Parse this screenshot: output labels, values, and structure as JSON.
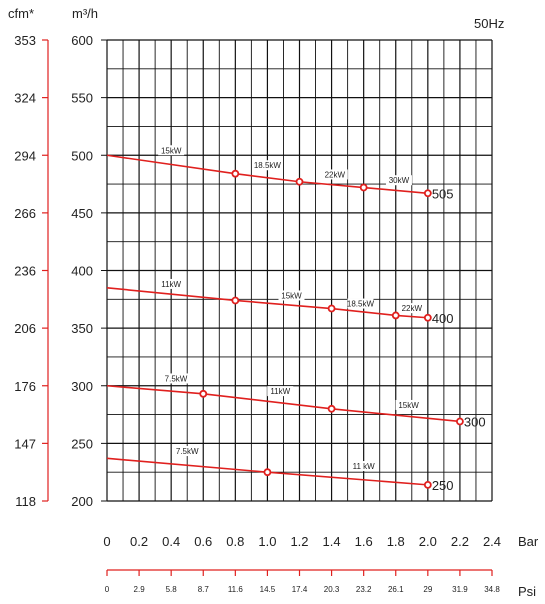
{
  "chart_data": {
    "type": "line",
    "frequency_label": "50Hz",
    "y_unit_label": "m³/h",
    "y2_unit_label": "cfm*",
    "x_unit_label": "Bar",
    "x2_unit_label": "Psi",
    "xlim": [
      0,
      2.4
    ],
    "ylim": [
      200,
      600
    ],
    "x_ticks": [
      "0",
      "0.2",
      "0.4",
      "0.6",
      "0.8",
      "1.0",
      "1.2",
      "1.4",
      "1.6",
      "1.8",
      "2.0",
      "2.2",
      "2.4"
    ],
    "y_ticks": [
      "200",
      "250",
      "300",
      "350",
      "400",
      "450",
      "500",
      "550",
      "600"
    ],
    "cfm_ticks": [
      "118",
      "147",
      "176",
      "206",
      "236",
      "266",
      "294",
      "324",
      "353"
    ],
    "psi_ticks": [
      "0",
      "2.9",
      "5.8",
      "8.7",
      "11.6",
      "14.5",
      "17.4",
      "20.3",
      "23.2",
      "26.1",
      "29",
      "31.9",
      "34.8"
    ],
    "grid": true,
    "line_color": "#e0201e",
    "series": [
      {
        "name": "505",
        "x": [
          0,
          0.8,
          1.2,
          1.6,
          2.0
        ],
        "y": [
          500,
          484,
          477,
          472,
          467
        ],
        "power_labels": [
          {
            "x": 0.4,
            "y": 500,
            "text": "15kW"
          },
          {
            "x": 1.0,
            "y": 487,
            "text": "18.5kW"
          },
          {
            "x": 1.42,
            "y": 479,
            "text": "22kW"
          },
          {
            "x": 1.82,
            "y": 474,
            "text": "30kW"
          }
        ]
      },
      {
        "name": "400",
        "x": [
          0,
          0.8,
          1.4,
          1.8,
          2.0
        ],
        "y": [
          385,
          374,
          367,
          361,
          359
        ],
        "power_labels": [
          {
            "x": 0.4,
            "y": 384,
            "text": "11kW"
          },
          {
            "x": 1.15,
            "y": 374,
            "text": "15kW"
          },
          {
            "x": 1.58,
            "y": 367,
            "text": "18.5kW"
          },
          {
            "x": 1.9,
            "y": 363,
            "text": "22kW"
          }
        ]
      },
      {
        "name": "300",
        "x": [
          0,
          0.6,
          1.4,
          2.2
        ],
        "y": [
          300,
          293,
          280,
          269
        ],
        "power_labels": [
          {
            "x": 0.43,
            "y": 302,
            "text": "7.5kW"
          },
          {
            "x": 1.08,
            "y": 291,
            "text": "11kW"
          },
          {
            "x": 1.88,
            "y": 279,
            "text": "15kW"
          }
        ]
      },
      {
        "name": "250",
        "x": [
          0,
          1.0,
          2.0
        ],
        "y": [
          237,
          225,
          214
        ],
        "power_labels": [
          {
            "x": 0.5,
            "y": 239,
            "text": "7.5kW"
          },
          {
            "x": 1.6,
            "y": 226,
            "text": "11 kW"
          }
        ]
      }
    ]
  }
}
